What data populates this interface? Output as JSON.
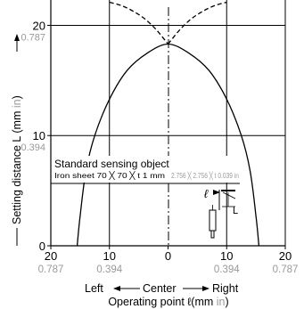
{
  "chart_data": {
    "type": "line",
    "xlabel": {
      "main": "Operating point ℓ(mm ",
      "unit": "in",
      "close": ")"
    },
    "direction": {
      "left": "Left",
      "center": "Center",
      "right": "Right"
    },
    "ylabel": {
      "main": "Setting distance L (mm ",
      "unit": "in",
      "close": ")"
    },
    "xlim": [
      -20,
      20
    ],
    "ylim": [
      0,
      25
    ],
    "x_ticks": [
      {
        "value": -20,
        "label": "20",
        "sub": "0.787"
      },
      {
        "value": -10,
        "label": "10",
        "sub": "0.394"
      },
      {
        "value": 0,
        "label": "0",
        "sub": ""
      },
      {
        "value": 10,
        "label": "10",
        "sub": "0.394"
      },
      {
        "value": 20,
        "label": "20",
        "sub": "0.787"
      }
    ],
    "y_ticks": [
      {
        "value": 0,
        "label": "0",
        "sub": ""
      },
      {
        "value": 10,
        "label": "10",
        "sub": "0.394"
      },
      {
        "value": 20,
        "label": "20",
        "sub": "0.787"
      }
    ],
    "grid": true,
    "series": [
      {
        "style": "solid",
        "x": [
          -15.5,
          -15.0,
          -14.0,
          -12.5,
          -10.0,
          -7.0,
          -3.5,
          0,
          3.5,
          7.0,
          10.0,
          12.5,
          14.0,
          15.0,
          15.5
        ],
        "y": [
          0,
          2.7,
          6.8,
          10.0,
          13.3,
          15.9,
          17.5,
          18.3,
          17.5,
          15.9,
          13.3,
          10.0,
          6.8,
          2.7,
          0
        ]
      },
      {
        "style": "dashed",
        "x": [
          -10,
          -8,
          -6,
          -4,
          -2,
          0,
          2,
          4,
          6,
          8,
          10
        ],
        "y": [
          22.1,
          21.8,
          21.3,
          20.6,
          19.6,
          18.3,
          19.6,
          20.6,
          21.3,
          21.8,
          22.1
        ]
      }
    ],
    "annotation": {
      "title": "Standard sensing object",
      "material": "Iron sheet 70 ╳ 70 ╳ t 1 mm",
      "material_in": "2.756 ╳ 2.756 ╳ t 0.039 in",
      "l_symbol": "ℓ",
      "L_symbol": "L"
    }
  }
}
